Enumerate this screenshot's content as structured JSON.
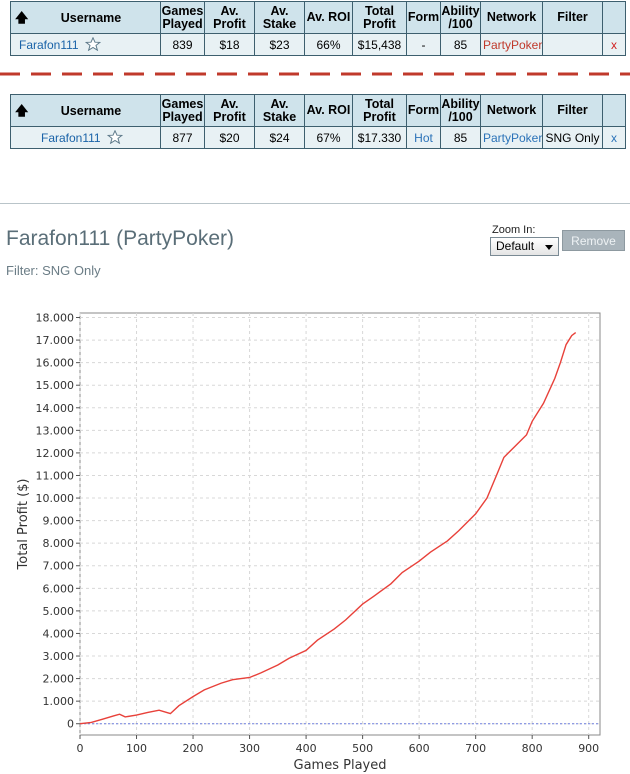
{
  "columns": [
    "Username",
    "Games Played",
    "Av. Profit",
    "Av. Stake",
    "Av. ROI",
    "Total Profit",
    "Form",
    "Ability /100",
    "Network",
    "Filter"
  ],
  "columns_lines": [
    [
      "Username"
    ],
    [
      "Games",
      "Played"
    ],
    [
      "Av.",
      "Profit"
    ],
    [
      "Av.",
      "Stake"
    ],
    [
      "Av. ROI"
    ],
    [
      "Total",
      "Profit"
    ],
    [
      "Form"
    ],
    [
      "Ability",
      "/100"
    ],
    [
      "Network"
    ],
    [
      "Filter"
    ]
  ],
  "sort_icon": "up-arrow-icon",
  "row1": {
    "username": "Farafon111",
    "games_played": "839",
    "av_profit": "$18",
    "av_stake": "$23",
    "av_roi": "66%",
    "total_profit": "$15,438",
    "form": "-",
    "ability": "85",
    "network": "PartyPoker",
    "filter": "",
    "remove": "x"
  },
  "row2": {
    "username": "Farafon111",
    "games_played": "877",
    "av_profit": "$20",
    "av_stake": "$24",
    "av_roi": "67%",
    "total_profit": "$17.330",
    "form": "Hot",
    "ability": "85",
    "network": "PartyPoker",
    "filter": "SNG Only",
    "remove": "x"
  },
  "colors": {
    "separator_red": "#c0392b",
    "line_red": "#e8413a",
    "zero_line_blue": "#7080e0",
    "header_bg": "#cfe3eb",
    "row_bg": "#e8f1f4"
  },
  "player": {
    "title": "Farafon111 (PartyPoker)",
    "filter": "Filter: SNG Only"
  },
  "zoom": {
    "label": "Zoom In:",
    "value": "Default"
  },
  "remove_label": "Remove",
  "chart_data": {
    "type": "line",
    "xlabel": "Games Played",
    "ylabel": "Total Profit ($)",
    "xlim": [
      0,
      920
    ],
    "ylim": [
      -500,
      18200
    ],
    "x_ticks": [
      0,
      100,
      200,
      300,
      400,
      500,
      600,
      700,
      800,
      900
    ],
    "x_tick_labels": [
      "0",
      "100",
      "200",
      "300",
      "400",
      "500",
      "600",
      "700",
      "800",
      "900"
    ],
    "y_ticks": [
      0,
      1000,
      2000,
      3000,
      4000,
      5000,
      6000,
      7000,
      8000,
      9000,
      10000,
      11000,
      12000,
      13000,
      14000,
      15000,
      16000,
      17000,
      18000
    ],
    "y_tick_labels": [
      "0",
      "1.000",
      "2.000",
      "3.000",
      "4.000",
      "5.000",
      "6.000",
      "7.000",
      "8.000",
      "9.000",
      "10.000",
      "11.000",
      "12.000",
      "13.000",
      "14.000",
      "15.000",
      "16.000",
      "17.000",
      "18.000"
    ],
    "grid": true,
    "series": [
      {
        "x": [
          0,
          20,
          40,
          60,
          70,
          80,
          100,
          120,
          140,
          160,
          175,
          200,
          220,
          250,
          270,
          300,
          320,
          350,
          370,
          400,
          420,
          450,
          470,
          500,
          520,
          550,
          570,
          600,
          620,
          650,
          670,
          700,
          720,
          740,
          750,
          770,
          790,
          800,
          820,
          840,
          850,
          860,
          870,
          877
        ],
        "y": [
          0,
          60,
          200,
          350,
          420,
          300,
          380,
          500,
          600,
          450,
          800,
          1200,
          1500,
          1800,
          1950,
          2050,
          2250,
          2600,
          2900,
          3250,
          3700,
          4200,
          4600,
          5300,
          5650,
          6200,
          6700,
          7200,
          7600,
          8100,
          8550,
          9300,
          10000,
          11200,
          11800,
          12300,
          12800,
          13400,
          14200,
          15300,
          16000,
          16800,
          17200,
          17330
        ]
      }
    ],
    "reference_line_y": 0
  }
}
